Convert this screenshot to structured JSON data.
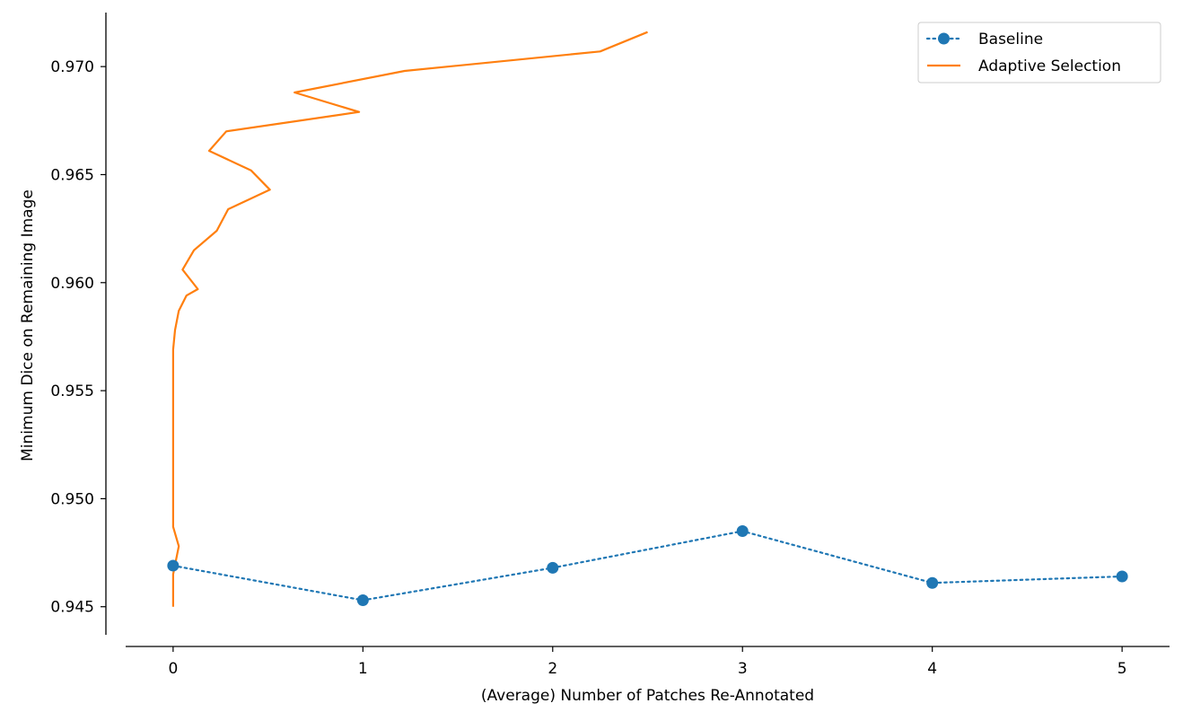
{
  "chart_data": {
    "type": "line",
    "title": "",
    "xlabel": "(Average) Number of Patches Re-Annotated",
    "ylabel": "Minimum Dice on Remaining Image",
    "xlim": [
      -0.25,
      5.25
    ],
    "ylim": [
      0.9437,
      0.9725
    ],
    "xticks": [
      0,
      1,
      2,
      3,
      4,
      5
    ],
    "xtick_labels": [
      "0",
      "1",
      "2",
      "3",
      "4",
      "5"
    ],
    "yticks": [
      0.945,
      0.95,
      0.955,
      0.96,
      0.965,
      0.97
    ],
    "ytick_labels": [
      "0.945",
      "0.950",
      "0.955",
      "0.960",
      "0.965",
      "0.970"
    ],
    "grid": false,
    "legend_position": "top-right",
    "series": [
      {
        "name": "Baseline",
        "color": "#1f77b4",
        "style": "dotted",
        "marker": "circle",
        "x": [
          0,
          1,
          2,
          3,
          4,
          5
        ],
        "y": [
          0.9469,
          0.9453,
          0.9468,
          0.9485,
          0.9461,
          0.9464
        ]
      },
      {
        "name": "Adaptive Selection",
        "color": "#ff7f0e",
        "style": "solid",
        "marker": "none",
        "x": [
          0,
          0,
          0.03,
          0,
          0,
          0,
          0,
          0.01,
          0.03,
          0.07,
          0.13,
          0.05,
          0.11,
          0.23,
          0.29,
          0.51,
          0.41,
          0.19,
          0.28,
          0.98,
          0.64,
          1.22,
          2.25,
          2.5
        ],
        "y": [
          0.945,
          0.9465,
          0.9478,
          0.9487,
          0.952,
          0.956,
          0.9569,
          0.9578,
          0.9587,
          0.9594,
          0.9597,
          0.9606,
          0.9615,
          0.9624,
          0.9634,
          0.9643,
          0.9652,
          0.9661,
          0.967,
          0.9679,
          0.9688,
          0.9698,
          0.9707,
          0.9716
        ]
      }
    ]
  }
}
